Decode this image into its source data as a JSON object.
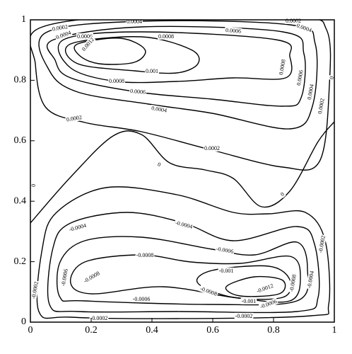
{
  "chart_data": {
    "type": "contour",
    "xlim": [
      0,
      1
    ],
    "ylim": [
      0,
      1
    ],
    "xticks": [
      0,
      0.2,
      0.4,
      0.6,
      0.8,
      1
    ],
    "yticks": [
      0,
      0.2,
      0.4,
      0.6,
      0.8,
      1
    ],
    "contours": [
      {
        "level": 0.0002
      },
      {
        "level": 0.0004
      },
      {
        "level": 0.0006
      },
      {
        "level": 0.0008
      },
      {
        "level": 0.001
      },
      {
        "level": 0.0012
      },
      {
        "level": 0
      },
      {
        "level": -0.0002
      },
      {
        "level": -0.0004
      },
      {
        "level": -0.0006
      },
      {
        "level": -0.0008
      },
      {
        "level": -0.001
      },
      {
        "level": -0.0012
      }
    ]
  }
}
